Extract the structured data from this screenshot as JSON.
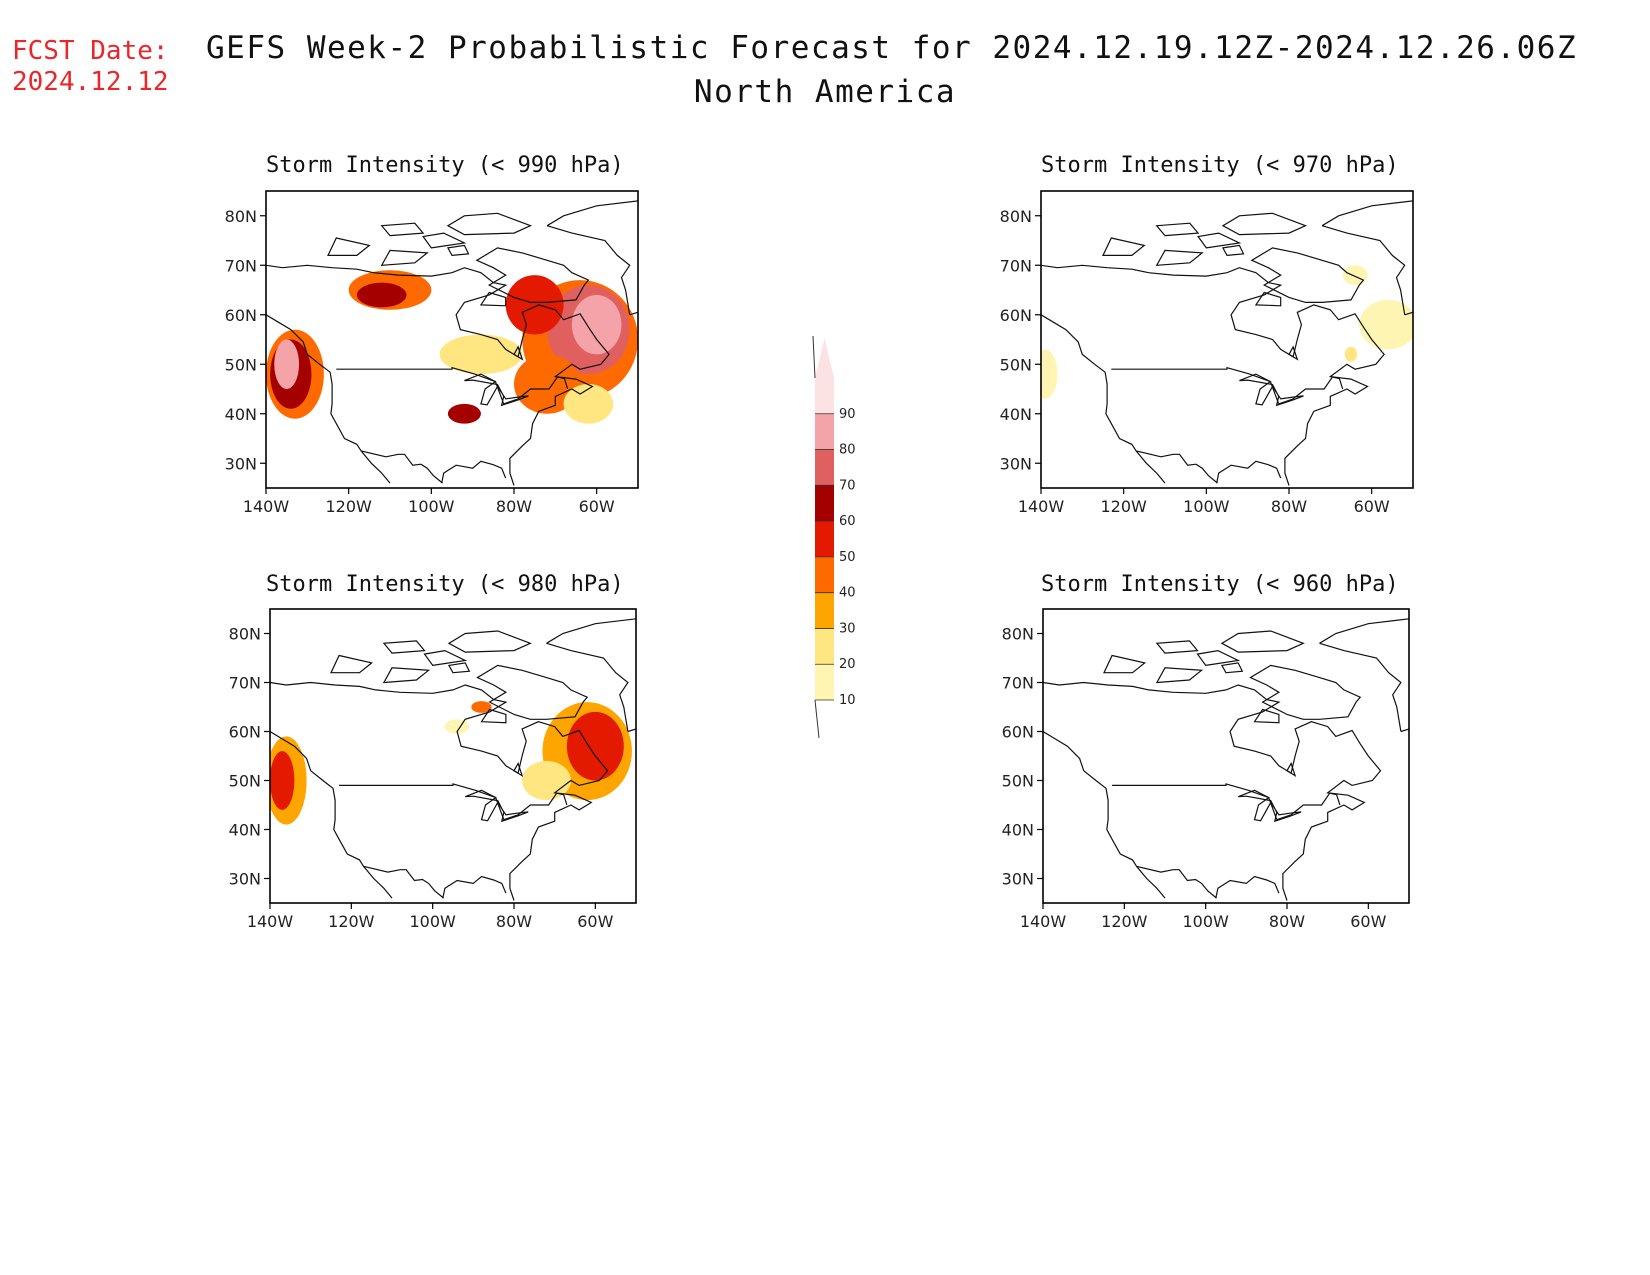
{
  "header": {
    "fcst_label": "FCST Date:",
    "fcst_date": "2024.12.12",
    "title_line1": "GEFS Week-2 Probabilistic Forecast for 2024.12.19.12Z-2024.12.26.06Z",
    "title_line2": "North America"
  },
  "axes": {
    "lat_labels": [
      "80N",
      "70N",
      "60N",
      "50N",
      "40N",
      "30N"
    ],
    "lat_values": [
      80,
      70,
      60,
      50,
      40,
      30
    ],
    "lon_labels": [
      "140W",
      "120W",
      "100W",
      "80W",
      "60W"
    ],
    "lon_values": [
      -140,
      -120,
      -100,
      -80,
      -60
    ]
  },
  "colorbar": {
    "levels": [
      "10",
      "20",
      "30",
      "40",
      "50",
      "60",
      "70",
      "80",
      "90"
    ],
    "colors": [
      "#fff5b3",
      "#ffe680",
      "#ffa500",
      "#ff6a00",
      "#e41a00",
      "#a50000",
      "#e06060",
      "#f4a3a8",
      "#fde2e4"
    ]
  },
  "panels": [
    {
      "title": "Storm Intensity (< 990 hPa)",
      "blobs": [
        {
          "lon": -133,
          "lat": 48,
          "rx": 7,
          "ry": 9,
          "level": 3
        },
        {
          "lon": -134,
          "lat": 48,
          "rx": 5,
          "ry": 7,
          "level": 5
        },
        {
          "lon": -135,
          "lat": 50,
          "rx": 3,
          "ry": 5,
          "level": 7
        },
        {
          "lon": -110,
          "lat": 65,
          "rx": 10,
          "ry": 4,
          "level": 3
        },
        {
          "lon": -112,
          "lat": 64,
          "rx": 6,
          "ry": 2.5,
          "level": 5
        },
        {
          "lon": -88,
          "lat": 52,
          "rx": 10,
          "ry": 4,
          "level": 1
        },
        {
          "lon": -64,
          "lat": 55,
          "rx": 14,
          "ry": 12,
          "level": 3
        },
        {
          "lon": -62,
          "lat": 57,
          "rx": 10,
          "ry": 9,
          "level": 6
        },
        {
          "lon": -60,
          "lat": 58,
          "rx": 6,
          "ry": 6,
          "level": 7
        },
        {
          "lon": -75,
          "lat": 62,
          "rx": 7,
          "ry": 6,
          "level": 4
        },
        {
          "lon": -72,
          "lat": 46,
          "rx": 8,
          "ry": 6,
          "level": 3
        },
        {
          "lon": -62,
          "lat": 42,
          "rx": 6,
          "ry": 4,
          "level": 1
        },
        {
          "lon": -92,
          "lat": 40,
          "rx": 4,
          "ry": 2,
          "level": 5
        }
      ]
    },
    {
      "title": "Storm Intensity (< 970 hPa)",
      "blobs": [
        {
          "lon": -139,
          "lat": 48,
          "rx": 3,
          "ry": 5,
          "level": 0
        },
        {
          "lon": -56,
          "lat": 58,
          "rx": 7,
          "ry": 5,
          "level": 0
        },
        {
          "lon": -64,
          "lat": 68,
          "rx": 3,
          "ry": 2,
          "level": 0
        },
        {
          "lon": -65,
          "lat": 52,
          "rx": 1.5,
          "ry": 1.5,
          "level": 1
        }
      ]
    },
    {
      "title": "Storm Intensity (< 980 hPa)",
      "blobs": [
        {
          "lon": -136,
          "lat": 50,
          "rx": 5,
          "ry": 9,
          "level": 2
        },
        {
          "lon": -137,
          "lat": 50,
          "rx": 3,
          "ry": 6,
          "level": 4
        },
        {
          "lon": -62,
          "lat": 56,
          "rx": 11,
          "ry": 10,
          "level": 2
        },
        {
          "lon": -60,
          "lat": 57,
          "rx": 7,
          "ry": 7,
          "level": 4
        },
        {
          "lon": -72,
          "lat": 50,
          "rx": 6,
          "ry": 4,
          "level": 1
        },
        {
          "lon": -88,
          "lat": 65,
          "rx": 2.5,
          "ry": 1.2,
          "level": 3
        },
        {
          "lon": -94,
          "lat": 61,
          "rx": 3,
          "ry": 1.5,
          "level": 0
        }
      ]
    },
    {
      "title": "Storm Intensity (< 960 hPa)",
      "blobs": []
    }
  ]
}
